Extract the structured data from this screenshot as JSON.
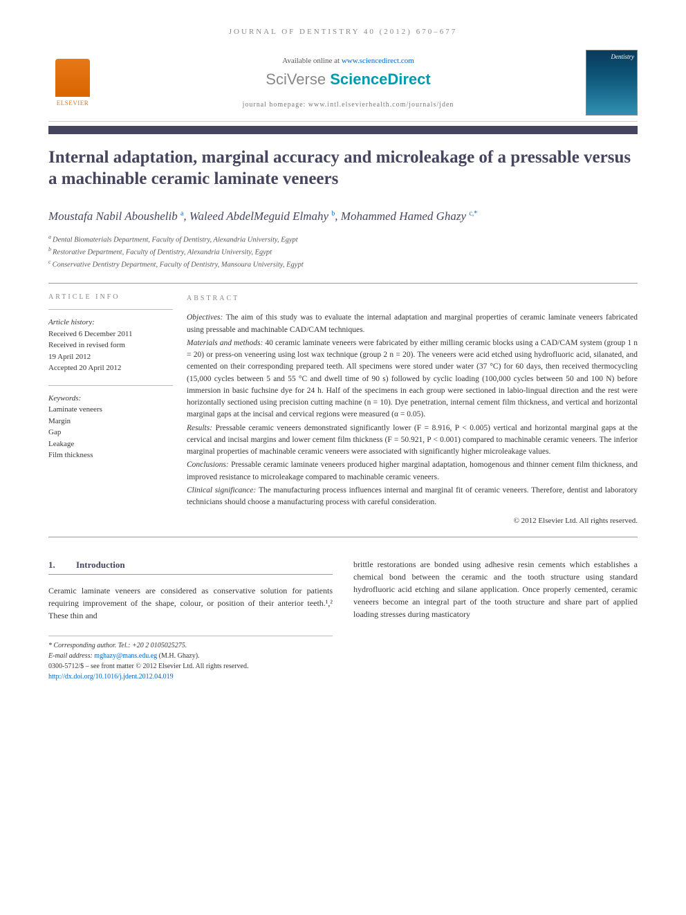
{
  "journal_ref": "JOURNAL OF DENTISTRY 40 (2012) 670–677",
  "header": {
    "available_prefix": "Available online at ",
    "available_link": "www.sciencedirect.com",
    "brand_sv": "SciVerse",
    "brand_sd": " ScienceDirect",
    "homepage": "journal homepage: www.intl.elsevierhealth.com/journals/jden",
    "cover_title": "Dentistry",
    "elsevier": "ELSEVIER"
  },
  "title": "Internal adaptation, marginal accuracy and microleakage of a pressable versus a machinable ceramic laminate veneers",
  "authors_html": "Moustafa Nabil Aboushelib",
  "authors": [
    {
      "name": "Moustafa Nabil Aboushelib",
      "sup": "a"
    },
    {
      "name": "Waleed AbdelMeguid Elmahy",
      "sup": "b"
    },
    {
      "name": "Mohammed Hamed Ghazy",
      "sup": "c,*"
    }
  ],
  "affiliations": [
    {
      "sup": "a",
      "text": "Dental Biomaterials Department, Faculty of Dentistry, Alexandria University, Egypt"
    },
    {
      "sup": "b",
      "text": "Restorative Department, Faculty of Dentistry, Alexandria University, Egypt"
    },
    {
      "sup": "c",
      "text": "Conservative Dentistry Department, Faculty of Dentistry, Mansoura University, Egypt"
    }
  ],
  "info": {
    "heading": "ARTICLE INFO",
    "history_label": "Article history:",
    "history": [
      "Received 6 December 2011",
      "Received in revised form",
      "19 April 2012",
      "Accepted 20 April 2012"
    ],
    "keywords_label": "Keywords:",
    "keywords": [
      "Laminate veneers",
      "Margin",
      "Gap",
      "Leakage",
      "Film thickness"
    ]
  },
  "abstract": {
    "heading": "ABSTRACT",
    "sections": [
      {
        "label": "Objectives:",
        "text": "The aim of this study was to evaluate the internal adaptation and marginal properties of ceramic laminate veneers fabricated using pressable and machinable CAD/CAM techniques."
      },
      {
        "label": "Materials and methods:",
        "text": "40 ceramic laminate veneers were fabricated by either milling ceramic blocks using a CAD/CAM system (group 1 n = 20) or press-on veneering using lost wax technique (group 2 n = 20). The veneers were acid etched using hydrofluoric acid, silanated, and cemented on their corresponding prepared teeth. All specimens were stored under water (37 °C) for 60 days, then received thermocycling (15,000 cycles between 5 and 55 °C and dwell time of 90 s) followed by cyclic loading (100,000 cycles between 50 and 100 N) before immersion in basic fuchsine dye for 24 h. Half of the specimens in each group were sectioned in labio-lingual direction and the rest were horizontally sectioned using precision cutting machine (n = 10). Dye penetration, internal cement film thickness, and vertical and horizontal marginal gaps at the incisal and cervical regions were measured (α = 0.05)."
      },
      {
        "label": "Results:",
        "text": "Pressable ceramic veneers demonstrated significantly lower (F = 8.916, P < 0.005) vertical and horizontal marginal gaps at the cervical and incisal margins and lower cement film thickness (F = 50.921, P < 0.001) compared to machinable ceramic veneers. The inferior marginal properties of machinable ceramic veneers were associated with significantly higher microleakage values."
      },
      {
        "label": "Conclusions:",
        "text": "Pressable ceramic laminate veneers produced higher marginal adaptation, homogenous and thinner cement film thickness, and improved resistance to microleakage compared to machinable ceramic veneers."
      },
      {
        "label": "Clinical significance:",
        "text": "The manufacturing process influences internal and marginal fit of ceramic veneers. Therefore, dentist and laboratory technicians should choose a manufacturing process with careful consideration."
      }
    ],
    "copyright": "© 2012 Elsevier Ltd. All rights reserved."
  },
  "body": {
    "section_num": "1.",
    "section_title": "Introduction",
    "col1": "Ceramic laminate veneers are considered as conservative solution for patients requiring improvement of the shape, colour, or position of their anterior teeth.¹,² These thin and",
    "col2": "brittle restorations are bonded using adhesive resin cements which establishes a chemical bond between the ceramic and the tooth structure using standard hydrofluoric acid etching and silane application. Once properly cemented, ceramic veneers become an integral part of the tooth structure and share part of applied loading stresses during masticatory"
  },
  "footnotes": {
    "corr": "* Corresponding author. Tel.: +20 2 0105025275.",
    "email_label": "E-mail address: ",
    "email": "mghazy@mans.edu.eg",
    "email_suffix": " (M.H. Ghazy).",
    "issn": "0300-5712/$ – see front matter © 2012 Elsevier Ltd. All rights reserved.",
    "doi": "http://dx.doi.org/10.1016/j.jdent.2012.04.019"
  },
  "colors": {
    "heading": "#454560",
    "link": "#0066cc",
    "orange": "#e67817",
    "teal": "#0099b0"
  }
}
